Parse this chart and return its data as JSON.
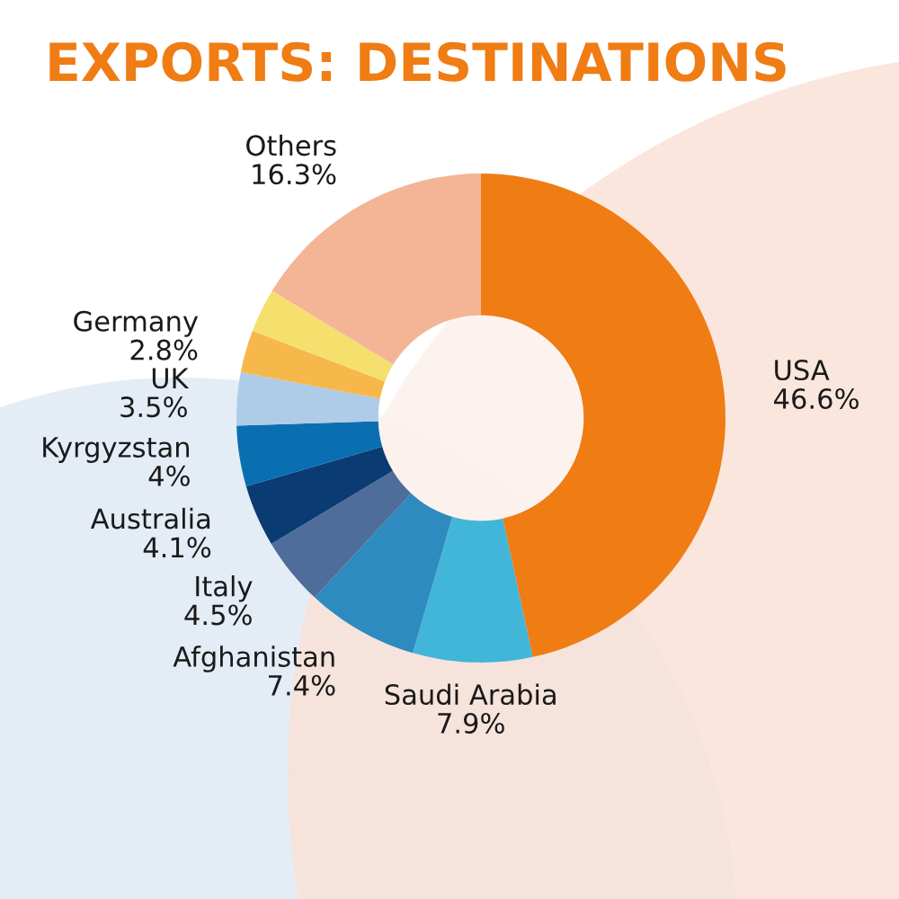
{
  "chart_data": {
    "type": "donut",
    "title": "EXPORTS: DESTINATIONS",
    "categories": [
      "USA",
      "Saudi Arabia",
      "Afghanistan",
      "Italy",
      "Australia",
      "Kyrgyzstan",
      "UK",
      "Germany",
      null,
      "Others"
    ],
    "values": [
      46.6,
      7.9,
      7.4,
      4.5,
      4.1,
      4,
      3.5,
      2.8,
      2.9,
      16.3
    ],
    "value_labels": [
      "46.6%",
      "7.9%",
      "7.4%",
      "4.5%",
      "4.1%",
      "4%",
      "3.5%",
      "2.8%",
      null,
      "16.3%"
    ],
    "colors": [
      "#f07c14",
      "#41b6d8",
      "#2e8bbf",
      "#4f6d9a",
      "#0b3b73",
      "#0a6fb0",
      "#aecbe8",
      "#f6b84b",
      "#f5e06e",
      "#f3b596"
    ],
    "legend": false
  }
}
